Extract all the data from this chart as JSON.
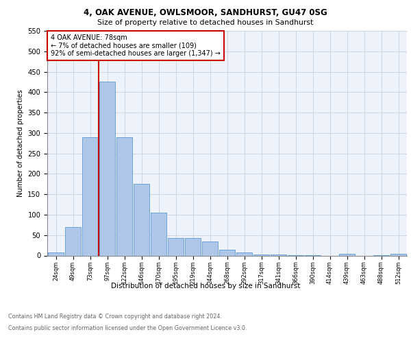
{
  "title": "4, OAK AVENUE, OWLSMOOR, SANDHURST, GU47 0SG",
  "subtitle": "Size of property relative to detached houses in Sandhurst",
  "xlabel": "Distribution of detached houses by size in Sandhurst",
  "ylabel": "Number of detached properties",
  "footer_line1": "Contains HM Land Registry data © Crown copyright and database right 2024.",
  "footer_line2": "Contains public sector information licensed under the Open Government Licence v3.0.",
  "bar_labels": [
    "24sqm",
    "49sqm",
    "73sqm",
    "97sqm",
    "122sqm",
    "146sqm",
    "170sqm",
    "195sqm",
    "219sqm",
    "244sqm",
    "268sqm",
    "292sqm",
    "317sqm",
    "341sqm",
    "366sqm",
    "390sqm",
    "414sqm",
    "439sqm",
    "463sqm",
    "488sqm",
    "512sqm"
  ],
  "bar_values": [
    8,
    70,
    290,
    425,
    290,
    175,
    105,
    43,
    43,
    35,
    15,
    8,
    3,
    2,
    1,
    1,
    0,
    4,
    0,
    1,
    4
  ],
  "bar_color": "#aec6e8",
  "bar_edgecolor": "#5b9bd5",
  "vline_color": "#cc0000",
  "vline_x": 2.5,
  "annotation_text": "4 OAK AVENUE: 78sqm\n← 7% of detached houses are smaller (109)\n92% of semi-detached houses are larger (1,347) →",
  "annotation_box_color": "#ffffff",
  "annotation_box_edgecolor": "#cc0000",
  "ylim": [
    0,
    550
  ],
  "yticks": [
    0,
    50,
    100,
    150,
    200,
    250,
    300,
    350,
    400,
    450,
    500,
    550
  ],
  "grid_color": "#c8d0e0",
  "bg_color": "#eef2fa",
  "fig_bg_color": "#ffffff"
}
